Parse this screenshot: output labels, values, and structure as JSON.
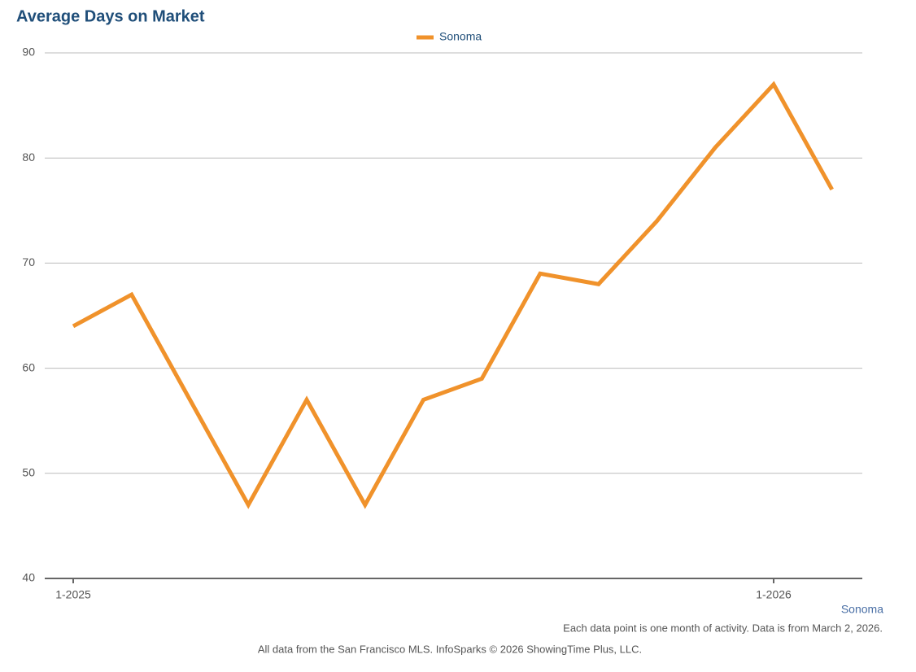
{
  "chart_data": {
    "type": "line",
    "title": "Average Days on Market",
    "categories": [
      "1-2025",
      null,
      null,
      null,
      null,
      null,
      null,
      null,
      null,
      null,
      null,
      null,
      "1-2026",
      null
    ],
    "series": [
      {
        "name": "Sonoma",
        "color": "#f0922b",
        "values": [
          64,
          67,
          57,
          47,
          57,
          47,
          57,
          59,
          69,
          68,
          74,
          81,
          87,
          77
        ]
      }
    ],
    "ylim": [
      40,
      90
    ],
    "yticks": [
      40,
      50,
      60,
      70,
      80,
      90
    ],
    "grid": true,
    "legend": "top",
    "notes": [
      "Each data point is one month of activity. Data is from March 2, 2026.",
      "All data from the San Francisco MLS. InfoSparks © 2026 ShowingTime Plus, LLC."
    ]
  }
}
